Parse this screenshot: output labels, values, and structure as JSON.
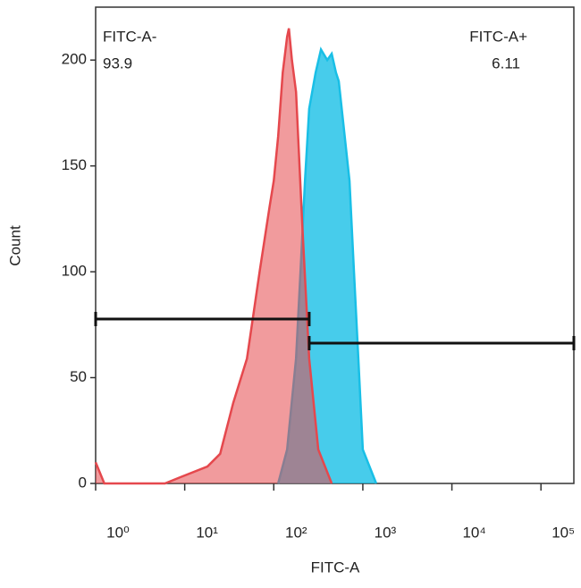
{
  "chart_data": {
    "type": "histogram-overlay",
    "x_label": "FITC-A",
    "y_label": "Count",
    "log_x": true,
    "xlim": [
      1,
      234000
    ],
    "xticks": [
      {
        "value": 1,
        "label": "10⁰"
      },
      {
        "value": 10,
        "label": "10¹"
      },
      {
        "value": 100,
        "label": "10²"
      },
      {
        "value": 1000,
        "label": "10³"
      },
      {
        "value": 10000,
        "label": "10⁴"
      },
      {
        "value": 100000,
        "label": "10⁵"
      }
    ],
    "ylim": [
      0,
      225
    ],
    "yticks": [
      0,
      50,
      100,
      150,
      200
    ],
    "series": [
      {
        "color": "#19bfe6",
        "x": [
          112,
          141,
          178,
          200,
          224,
          250,
          295,
          339,
          398,
          447,
          500,
          537,
          708,
          794,
          891,
          1000,
          1413
        ],
        "values": [
          0,
          16,
          59,
          101,
          143,
          177,
          194,
          205,
          200,
          203,
          194,
          190,
          143,
          101,
          59,
          16,
          0
        ]
      },
      {
        "color": "#e5484d",
        "x": [
          1,
          1.25,
          6,
          9,
          18,
          25,
          35,
          50,
          70,
          90,
          100,
          112,
          126,
          141,
          148,
          160,
          178,
          209,
          250,
          316,
          447
        ],
        "values": [
          10,
          0,
          0,
          3,
          8,
          14,
          38,
          59,
          101,
          131,
          143,
          164,
          194,
          211,
          215,
          200,
          185,
          122,
          59,
          16,
          0
        ]
      }
    ],
    "gates": [
      {
        "name": "FITC-A-",
        "percent": 93.9,
        "range": [
          1,
          250
        ]
      },
      {
        "name": "FITC-A+",
        "percent": 6.11,
        "range": [
          250,
          234000
        ]
      }
    ]
  }
}
